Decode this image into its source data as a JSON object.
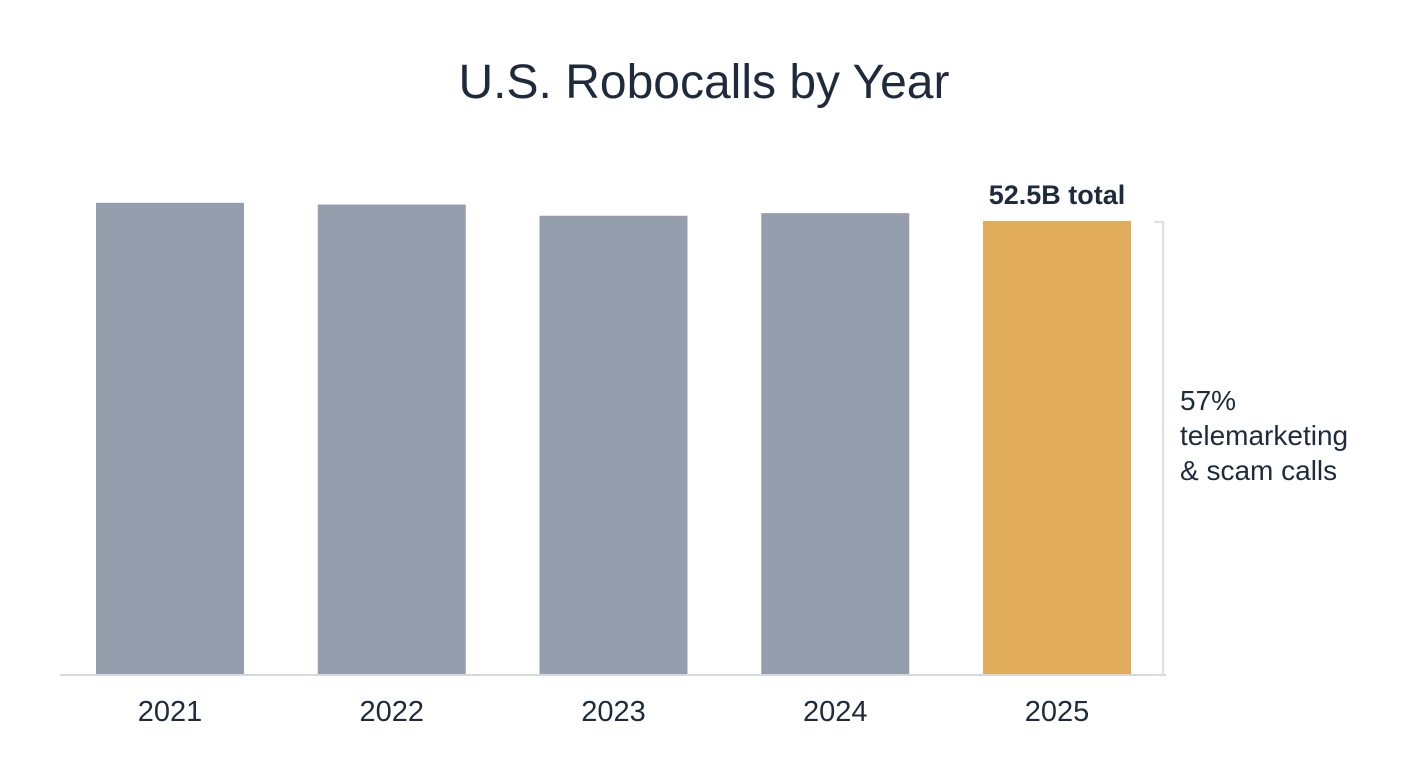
{
  "chart_data": {
    "type": "bar",
    "title": "U.S. Robocalls by Year",
    "xlabel": "",
    "ylabel": "",
    "categories": [
      "2021",
      "2022",
      "2023",
      "2024",
      "2025"
    ],
    "values": [
      54.6,
      54.4,
      53.1,
      53.4,
      52.5
    ],
    "unit": "B",
    "ylim": [
      0,
      55
    ],
    "grid": false,
    "legend": "none",
    "highlight_index": 4,
    "data_labels": [
      {
        "category": "2025",
        "text": "52.5B total"
      }
    ],
    "annotations": [
      {
        "target": "2025",
        "lines": [
          "57%",
          "telemarketing",
          "& scam calls"
        ]
      }
    ]
  },
  "colors": {
    "bar_default": "#959eac",
    "bar_highlight": "#e1ad5c",
    "text": "#1f2a3c",
    "axis": "#d5d8dd",
    "bracket": "#dcdfe3"
  }
}
